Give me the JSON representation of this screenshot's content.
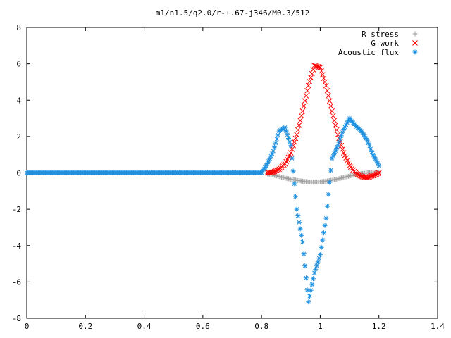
{
  "chart_data": {
    "type": "scatter",
    "title": "m1/n1.5/q2.0/r-+.67-j346/M0.3/512",
    "xlabel": "",
    "ylabel": "",
    "xlim": [
      0,
      1.4
    ],
    "ylim": [
      -8,
      8
    ],
    "xticks": [
      "0",
      "0.2",
      "0.4",
      "0.6",
      "0.8",
      "1",
      "1.2",
      "1.4"
    ],
    "yticks": [
      "-8",
      "-6",
      "-4",
      "-2",
      "0",
      "2",
      "4",
      "6",
      "8"
    ],
    "grid": false,
    "legend_position": "top-right",
    "series": [
      {
        "name": "R stress",
        "marker": "plus",
        "color": "#a0a0a0",
        "points": [
          [
            0.82,
            -0.05
          ],
          [
            0.84,
            -0.12
          ],
          [
            0.86,
            -0.2
          ],
          [
            0.88,
            -0.28
          ],
          [
            0.9,
            -0.35
          ],
          [
            0.92,
            -0.41
          ],
          [
            0.94,
            -0.46
          ],
          [
            0.96,
            -0.5
          ],
          [
            0.98,
            -0.51
          ],
          [
            1.0,
            -0.5
          ],
          [
            1.02,
            -0.46
          ],
          [
            1.04,
            -0.4
          ],
          [
            1.06,
            -0.33
          ],
          [
            1.08,
            -0.25
          ],
          [
            1.1,
            -0.17
          ],
          [
            1.12,
            -0.1
          ],
          [
            1.14,
            -0.04
          ],
          [
            1.16,
            0.0
          ],
          [
            1.18,
            0.02
          ],
          [
            1.2,
            0.0
          ]
        ]
      },
      {
        "name": "G work",
        "marker": "cross",
        "color": "#ff0000",
        "points": [
          [
            0.82,
            0.0
          ],
          [
            0.84,
            0.05
          ],
          [
            0.86,
            0.2
          ],
          [
            0.88,
            0.5
          ],
          [
            0.9,
            1.1
          ],
          [
            0.92,
            2.1
          ],
          [
            0.94,
            3.4
          ],
          [
            0.96,
            4.8
          ],
          [
            0.98,
            5.9
          ],
          [
            1.0,
            5.8
          ],
          [
            1.02,
            4.8
          ],
          [
            1.04,
            3.4
          ],
          [
            1.06,
            2.1
          ],
          [
            1.08,
            1.1
          ],
          [
            1.1,
            0.4
          ],
          [
            1.12,
            0.0
          ],
          [
            1.14,
            -0.2
          ],
          [
            1.16,
            -0.25
          ],
          [
            1.18,
            -0.15
          ],
          [
            1.2,
            0.0
          ]
        ]
      },
      {
        "name": "Acoustic flux",
        "marker": "star",
        "color": "#1e90e0",
        "points": [
          [
            0.0,
            0.0
          ],
          [
            0.1,
            0.0
          ],
          [
            0.2,
            0.0
          ],
          [
            0.3,
            0.0
          ],
          [
            0.4,
            0.0
          ],
          [
            0.5,
            0.0
          ],
          [
            0.6,
            0.0
          ],
          [
            0.7,
            0.0
          ],
          [
            0.8,
            0.0
          ],
          [
            0.82,
            0.5
          ],
          [
            0.84,
            1.2
          ],
          [
            0.86,
            2.3
          ],
          [
            0.88,
            2.5
          ],
          [
            0.9,
            1.5
          ],
          [
            0.92,
            -2.0
          ],
          [
            0.94,
            -3.8
          ],
          [
            0.96,
            -7.1
          ],
          [
            0.98,
            -5.5
          ],
          [
            1.0,
            -4.5
          ],
          [
            1.02,
            -2.5
          ],
          [
            1.04,
            0.8
          ],
          [
            1.06,
            1.5
          ],
          [
            1.08,
            2.4
          ],
          [
            1.1,
            3.0
          ],
          [
            1.12,
            2.6
          ],
          [
            1.14,
            2.3
          ],
          [
            1.16,
            1.8
          ],
          [
            1.18,
            1.0
          ],
          [
            1.2,
            0.4
          ]
        ]
      }
    ]
  }
}
